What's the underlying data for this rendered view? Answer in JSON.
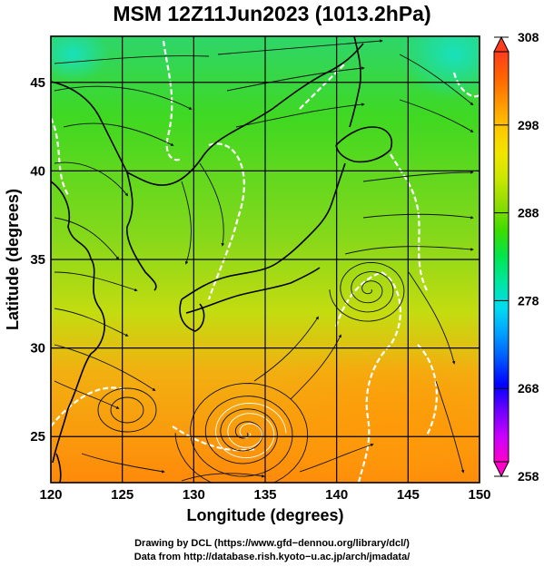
{
  "title": "MSM 12Z11Jun2023 (1013.2hPa)",
  "map": {
    "x_axis": {
      "label": "Longitude (degrees)",
      "min": 120,
      "max": 150,
      "ticks": [
        120,
        125,
        130,
        135,
        140,
        145,
        150
      ]
    },
    "y_axis": {
      "label": "Latitude  (degrees)",
      "min": 22.4,
      "max": 47.6,
      "ticks": [
        25,
        30,
        35,
        40,
        45
      ]
    },
    "grid": true,
    "field": "temperature (K) with streamlines",
    "typhoon_center": {
      "lon": 133.6,
      "lat": 25.2
    },
    "low_center": {
      "lon": 142.3,
      "lat": 33.3
    },
    "colorbar": {
      "min": 258,
      "max": 308,
      "labels": [
        308,
        298,
        288,
        278,
        268,
        258
      ],
      "colors": [
        "#ff00c8",
        "#c800ff",
        "#6e00ff",
        "#0000ff",
        "#0055ff",
        "#00a0ff",
        "#00dcf0",
        "#00e6a0",
        "#00e650",
        "#3cdc00",
        "#8cdc00",
        "#c8e600",
        "#f0e600",
        "#ffc800",
        "#ff9600",
        "#ff6400",
        "#ff3c1e"
      ]
    }
  },
  "credits": {
    "line1": "Drawing by DCL (https://www.gfd−dennou.org/library/dcl/)",
    "line2": "Data from http://database.rish.kyoto−u.ac.jp/arch/jmadata/"
  }
}
